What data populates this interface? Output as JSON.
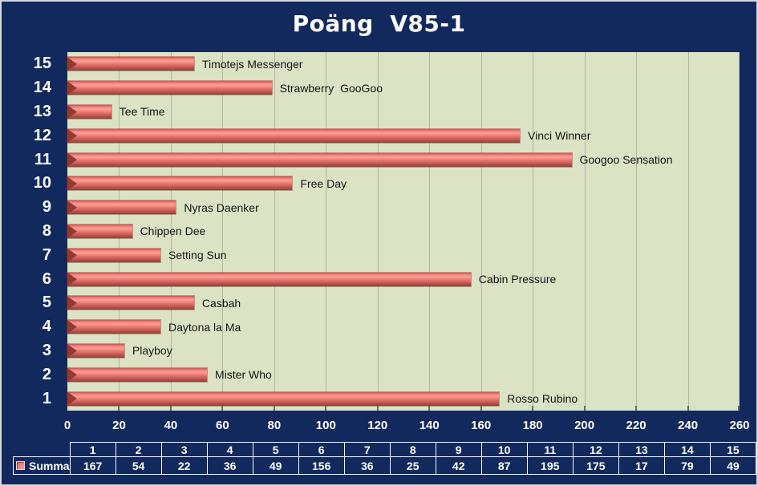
{
  "title": "Poäng  V85-1",
  "legend": {
    "label": "Summa",
    "swatch_icon": "bar-series-swatch"
  },
  "colors": {
    "background_navy": "#12295E",
    "plot_background": "#DCE3C4",
    "gridline": "#B0B6A6",
    "bar_main": "#E8786F",
    "bar_highlight": "#FF9E97",
    "bar_dark": "#9A423B",
    "title_text": "#FFFFFF",
    "bar_label_text": "#141414",
    "table_border": "#F5F5F5"
  },
  "chart_data": {
    "type": "bar",
    "orientation": "horizontal",
    "title": "Poäng  V85-1",
    "series_name": "Summa",
    "xlim": [
      0,
      260
    ],
    "x_ticks": [
      0,
      20,
      40,
      60,
      80,
      100,
      120,
      140,
      160,
      180,
      200,
      220,
      240,
      260
    ],
    "grid": true,
    "rows_top_to_bottom": [
      {
        "number": "15",
        "name": "Timotejs Messenger",
        "value": 49
      },
      {
        "number": "14",
        "name": "Strawberry  GooGoo",
        "value": 79
      },
      {
        "number": "13",
        "name": "Tee Time",
        "value": 17
      },
      {
        "number": "12",
        "name": "Vinci Winner",
        "value": 175
      },
      {
        "number": "11",
        "name": "Googoo Sensation",
        "value": 195
      },
      {
        "number": "10",
        "name": "Free Day",
        "value": 87
      },
      {
        "number": "9",
        "name": "Nyras Daenker",
        "value": 42
      },
      {
        "number": "8",
        "name": "Chippen Dee",
        "value": 25
      },
      {
        "number": "7",
        "name": "Setting Sun",
        "value": 36
      },
      {
        "number": "6",
        "name": "Cabin Pressure",
        "value": 156
      },
      {
        "number": "5",
        "name": "Casbah",
        "value": 49
      },
      {
        "number": "4",
        "name": "Daytona la Ma",
        "value": 36
      },
      {
        "number": "3",
        "name": "Playboy",
        "value": 22
      },
      {
        "number": "2",
        "name": "Mister Who",
        "value": 54
      },
      {
        "number": "1",
        "name": "Rosso Rubino",
        "value": 167
      }
    ]
  },
  "table": {
    "row_label": "Summa",
    "columns": [
      "1",
      "2",
      "3",
      "4",
      "5",
      "6",
      "7",
      "8",
      "9",
      "10",
      "11",
      "12",
      "13",
      "14",
      "15"
    ],
    "values": [
      167,
      54,
      22,
      36,
      49,
      156,
      36,
      25,
      42,
      87,
      195,
      175,
      17,
      79,
      49
    ]
  }
}
